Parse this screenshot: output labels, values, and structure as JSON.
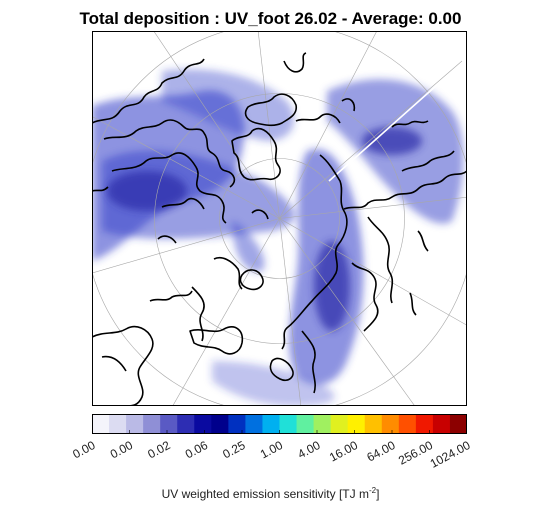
{
  "title": "Total deposition : UV_foot 26.02 - Average: 0.00",
  "colorbar": {
    "label_main": "UV weighted emission sensitivity [TJ m",
    "label_exp": "-2",
    "label_end": "]",
    "ticks": [
      "0.00",
      "0.00",
      "0.02",
      "0.06",
      "0.25",
      "1.00",
      "4.00",
      "16.00",
      "64.00",
      "256.00",
      "1024.00"
    ],
    "colors": [
      "#f4f4fb",
      "#dcdcf2",
      "#babae6",
      "#8f8fd6",
      "#5a5ac4",
      "#2d2db3",
      "#0a0aa0",
      "#00008c",
      "#0030c0",
      "#0070e0",
      "#00b0f0",
      "#20e0d8",
      "#60f0a0",
      "#a0f060",
      "#e0f020",
      "#fff000",
      "#ffc000",
      "#ff8c00",
      "#ff5000",
      "#f01800",
      "#c80000",
      "#8c0000"
    ]
  },
  "map": {
    "projection": "polar stereographic",
    "graticule": true,
    "plume_color": "#2f3cc8",
    "coast_color": "#000000"
  }
}
